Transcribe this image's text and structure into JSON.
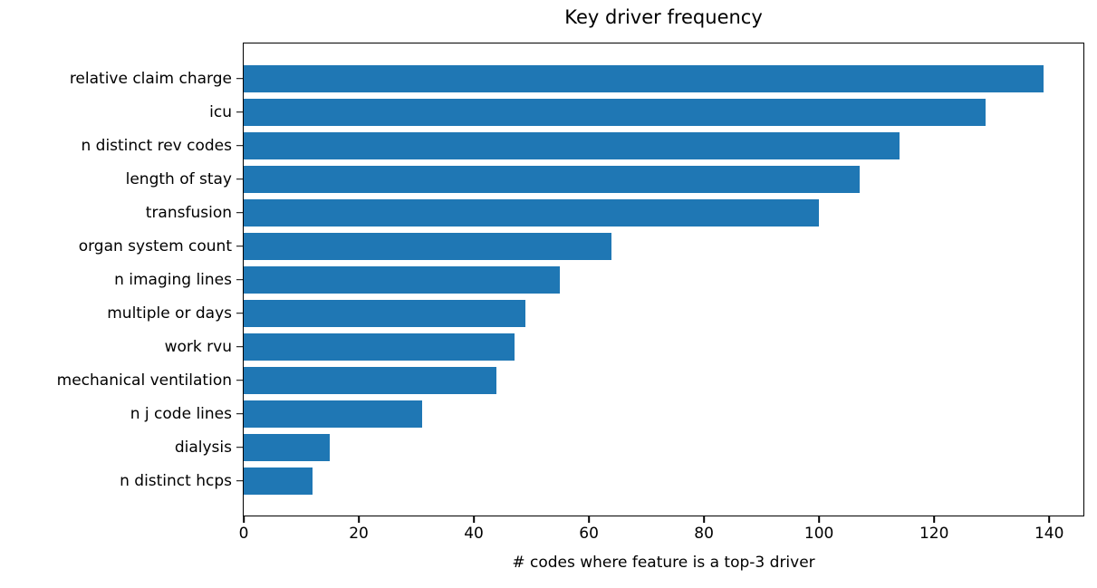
{
  "chart_data": {
    "type": "bar",
    "orientation": "horizontal",
    "title": "Key driver frequency",
    "xlabel": "# codes where feature is a top-3 driver",
    "ylabel": "",
    "categories": [
      "relative claim charge",
      "icu",
      "n distinct rev codes",
      "length of stay",
      "transfusion",
      "organ system count",
      "n imaging lines",
      "multiple or days",
      "work rvu",
      "mechanical ventilation",
      "n j code lines",
      "dialysis",
      "n distinct hcps"
    ],
    "values": [
      139,
      129,
      114,
      107,
      100,
      64,
      55,
      49,
      47,
      44,
      31,
      15,
      12
    ],
    "x_ticks": [
      0,
      20,
      40,
      60,
      80,
      100,
      120,
      140
    ],
    "xlim": [
      0,
      145.95
    ],
    "bar_color": "#1f77b4",
    "axis_color": "#000000",
    "background_color": "#ffffff",
    "grid": false,
    "legend_position": "none"
  }
}
